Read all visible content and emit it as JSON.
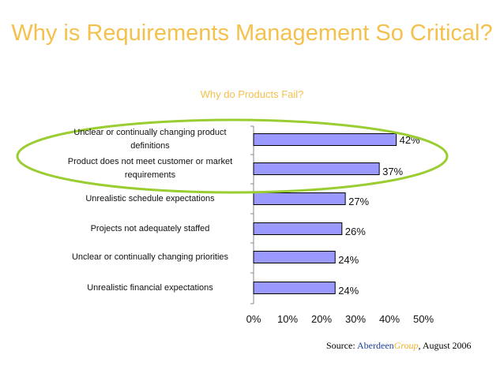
{
  "title": "Why is Requirements Management So Critical?",
  "subtitle": "Why do Products Fail?",
  "source": {
    "prefix": "Source: ",
    "brand_main": "Aberdeen",
    "brand_accent": "Group",
    "suffix": ", August 2006"
  },
  "colors": {
    "title": "#f4c04e",
    "bar_fill": "#9999ff",
    "bar_stroke": "#000000",
    "highlight_ellipse": "#9acd32",
    "source_brand": "#1f3f9f",
    "source_accent": "#f0b02a"
  },
  "chart_data": {
    "type": "bar",
    "orientation": "horizontal",
    "title": "Why do Products Fail?",
    "categories": [
      "Unclear or continually changing product definitions",
      "Product does not meet customer or market requirements",
      "Unrealistic schedule expectations",
      "Projects not adequately staffed",
      "Unclear or continually changing priorities",
      "Unrealistic financial expectations"
    ],
    "values": [
      42,
      37,
      27,
      26,
      24,
      24
    ],
    "data_labels": [
      "42%",
      "37%",
      "27%",
      "26%",
      "24%",
      "24%"
    ],
    "x_ticks": [
      "0%",
      "10%",
      "20%",
      "30%",
      "40%",
      "50%"
    ],
    "xlim": [
      0,
      50
    ],
    "grid": false,
    "legend": "none",
    "highlighted_categories": [
      0,
      1
    ]
  }
}
